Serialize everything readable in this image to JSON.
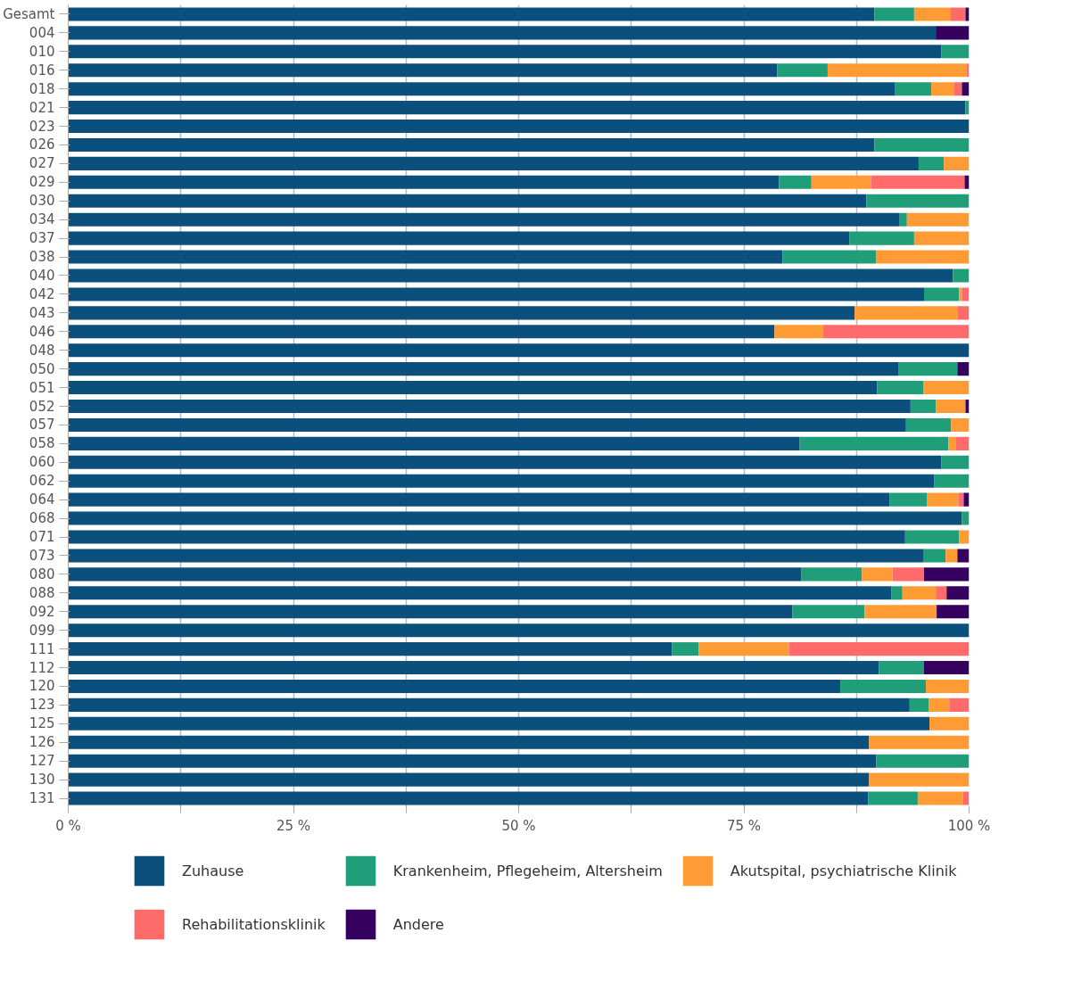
{
  "chart_data": {
    "type": "bar",
    "orientation": "horizontal",
    "stacked": true,
    "categories": [
      "Gesamt",
      "004",
      "010",
      "016",
      "018",
      "021",
      "023",
      "026",
      "027",
      "029",
      "030",
      "034",
      "037",
      "038",
      "040",
      "042",
      "043",
      "046",
      "048",
      "050",
      "051",
      "052",
      "057",
      "058",
      "060",
      "062",
      "064",
      "068",
      "071",
      "073",
      "080",
      "088",
      "092",
      "099",
      "111",
      "112",
      "120",
      "123",
      "125",
      "126",
      "127",
      "130",
      "131"
    ],
    "series": [
      {
        "name": "Zuhause",
        "color": "#0b4f7c",
        "values": [
          89.5,
          96.3,
          96.9,
          78.7,
          91.8,
          99.6,
          100,
          89.5,
          94.4,
          78.9,
          88.6,
          92.3,
          86.7,
          79.3,
          98.2,
          95.0,
          87.3,
          78.4,
          100,
          92.2,
          89.8,
          93.5,
          93.0,
          81.2,
          96.9,
          96.1,
          91.2,
          99.2,
          92.9,
          94.9,
          81.4,
          91.4,
          80.4,
          100,
          67.0,
          90.0,
          85.7,
          93.4,
          95.6,
          88.9,
          89.7,
          88.9,
          88.8
        ]
      },
      {
        "name": "Krankenheim, Pflegeheim, Altersheim",
        "color": "#1f9e79",
        "values": [
          4.4,
          0,
          3.1,
          5.6,
          4.0,
          0.4,
          0,
          10.5,
          2.8,
          3.6,
          11.4,
          0.8,
          7.2,
          10.4,
          1.8,
          3.9,
          0,
          0,
          0,
          6.5,
          5.1,
          2.8,
          5.0,
          16.5,
          3.1,
          3.9,
          4.1,
          0.8,
          6.0,
          2.5,
          6.7,
          1.2,
          8.0,
          0,
          3.0,
          5.0,
          9.5,
          2.1,
          0,
          0,
          10.3,
          0,
          5.5
        ]
      },
      {
        "name": "Akutspital, psychiatrische Klinik",
        "color": "#ff9b35",
        "values": [
          4.0,
          0,
          0,
          15.4,
          2.5,
          0,
          0,
          0,
          2.8,
          6.6,
          0,
          6.9,
          6.1,
          10.3,
          0,
          0.3,
          11.4,
          5.4,
          0,
          0,
          5.1,
          3.3,
          2.0,
          0.8,
          0,
          0,
          3.5,
          0,
          1.1,
          1.3,
          3.4,
          3.7,
          8.0,
          0,
          10.0,
          0,
          4.8,
          2.3,
          4.4,
          11.1,
          0,
          11.1,
          5.0
        ]
      },
      {
        "name": "Rehabilitationsklinik",
        "color": "#ff6b6b",
        "values": [
          1.7,
          0,
          0,
          0.3,
          0.9,
          0,
          0,
          0,
          0,
          10.4,
          0,
          0,
          0,
          0,
          0,
          0.8,
          1.3,
          16.2,
          0,
          0,
          0,
          0,
          0,
          1.5,
          0,
          0,
          0.6,
          0,
          0,
          0,
          3.5,
          1.2,
          0,
          0,
          20.0,
          0,
          0,
          2.2,
          0,
          0,
          0,
          0,
          0.7
        ]
      },
      {
        "name": "Andere",
        "color": "#36005f",
        "values": [
          0.4,
          3.7,
          0,
          0,
          0.8,
          0,
          0,
          0,
          0,
          0.5,
          0,
          0,
          0,
          0,
          0,
          0,
          0,
          0,
          0,
          1.3,
          0,
          0.4,
          0,
          0,
          0,
          0,
          0.6,
          0,
          0,
          1.3,
          5.0,
          2.5,
          3.6,
          0,
          0,
          5.0,
          0,
          0,
          0,
          0,
          0,
          0,
          0
        ]
      }
    ],
    "xlim": [
      0,
      100
    ],
    "xticks": [
      {
        "value": 0,
        "label": "0 %"
      },
      {
        "value": 12.5,
        "label": null
      },
      {
        "value": 25,
        "label": "25 %"
      },
      {
        "value": 37.5,
        "label": null
      },
      {
        "value": 50,
        "label": "50 %"
      },
      {
        "value": 62.5,
        "label": null
      },
      {
        "value": 75,
        "label": "75 %"
      },
      {
        "value": 87.5,
        "label": null
      },
      {
        "value": 100,
        "label": "100 %"
      }
    ],
    "grid": "x",
    "legend": "bottom"
  }
}
